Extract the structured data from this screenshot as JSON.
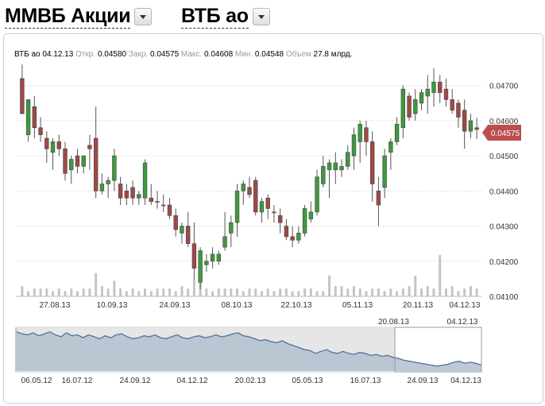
{
  "header": {
    "market_label": "ММВБ Акции",
    "ticker_label": "ВТБ ао"
  },
  "info_bar": {
    "ticker": "ВТБ ао",
    "date": "04.12.13",
    "open_label": "Откр.",
    "open": "0.04580",
    "close_label": "Закр.",
    "close": "0.04575",
    "high_label": "Макс.",
    "high": "0.04608",
    "low_label": "Мин.",
    "low": "0.04548",
    "volume_label": "Объем",
    "volume": "27.8 млрд."
  },
  "colors": {
    "up": "#3d9a3d",
    "down": "#a04848",
    "price_tag": "#bb4e4e",
    "navigator_fill": "#b2bfcd",
    "navigator_line": "#4f72a0"
  },
  "chart_data": [
    {
      "type": "candlestick",
      "x_tick_labels": [
        "27.08.13",
        "10.09.13",
        "24.09.13",
        "08.10.13",
        "22.10.13",
        "05.11.13",
        "20.11.13",
        "04.12.13"
      ],
      "y_tick_labels": [
        "0.04700",
        "0.04600",
        "0.04500",
        "0.04400",
        "0.04300",
        "0.04200",
        "0.04100"
      ],
      "ylim": [
        0.041,
        0.0474
      ],
      "last_price_label": "0.04575",
      "grid": "horizontal dotted",
      "candles": [
        {
          "o": 0.0472,
          "h": 0.0476,
          "l": 0.0462,
          "c": 0.0462
        },
        {
          "o": 0.0456,
          "h": 0.0466,
          "l": 0.0454,
          "c": 0.0466
        },
        {
          "o": 0.0464,
          "h": 0.0467,
          "l": 0.0455,
          "c": 0.0458
        },
        {
          "o": 0.0458,
          "h": 0.0461,
          "l": 0.0454,
          "c": 0.0456
        },
        {
          "o": 0.0455,
          "h": 0.0457,
          "l": 0.0448,
          "c": 0.0452
        },
        {
          "o": 0.0451,
          "h": 0.0455,
          "l": 0.0446,
          "c": 0.0454
        },
        {
          "o": 0.0454,
          "h": 0.0456,
          "l": 0.045,
          "c": 0.0452
        },
        {
          "o": 0.0452,
          "h": 0.0454,
          "l": 0.0443,
          "c": 0.0445
        },
        {
          "o": 0.0446,
          "h": 0.045,
          "l": 0.0442,
          "c": 0.0449
        },
        {
          "o": 0.045,
          "h": 0.0452,
          "l": 0.0445,
          "c": 0.0447
        },
        {
          "o": 0.0447,
          "h": 0.045,
          "l": 0.0445,
          "c": 0.045
        },
        {
          "o": 0.0453,
          "h": 0.0456,
          "l": 0.0446,
          "c": 0.0452
        },
        {
          "o": 0.0455,
          "h": 0.0464,
          "l": 0.0438,
          "c": 0.044
        },
        {
          "o": 0.044,
          "h": 0.0445,
          "l": 0.0439,
          "c": 0.0442
        },
        {
          "o": 0.0442,
          "h": 0.0444,
          "l": 0.0438,
          "c": 0.0443
        },
        {
          "o": 0.0443,
          "h": 0.0452,
          "l": 0.044,
          "c": 0.045
        },
        {
          "o": 0.0442,
          "h": 0.0444,
          "l": 0.0436,
          "c": 0.0438
        },
        {
          "o": 0.044,
          "h": 0.0442,
          "l": 0.0436,
          "c": 0.0438
        },
        {
          "o": 0.0441,
          "h": 0.0443,
          "l": 0.0436,
          "c": 0.0438
        },
        {
          "o": 0.0438,
          "h": 0.044,
          "l": 0.0436,
          "c": 0.0439
        },
        {
          "o": 0.0438,
          "h": 0.0449,
          "l": 0.0436,
          "c": 0.0448
        },
        {
          "o": 0.0438,
          "h": 0.0442,
          "l": 0.0436,
          "c": 0.0437
        },
        {
          "o": 0.0437,
          "h": 0.044,
          "l": 0.0435,
          "c": 0.0437
        },
        {
          "o": 0.0436,
          "h": 0.0439,
          "l": 0.0434,
          "c": 0.0436
        },
        {
          "o": 0.0436,
          "h": 0.0438,
          "l": 0.0432,
          "c": 0.0433
        },
        {
          "o": 0.0433,
          "h": 0.0435,
          "l": 0.0427,
          "c": 0.0429
        },
        {
          "o": 0.0428,
          "h": 0.0431,
          "l": 0.0425,
          "c": 0.043
        },
        {
          "o": 0.043,
          "h": 0.0434,
          "l": 0.0424,
          "c": 0.0425
        },
        {
          "o": 0.0425,
          "h": 0.0431,
          "l": 0.0415,
          "c": 0.0418
        },
        {
          "o": 0.0414,
          "h": 0.0424,
          "l": 0.0412,
          "c": 0.0423
        },
        {
          "o": 0.0419,
          "h": 0.0422,
          "l": 0.0417,
          "c": 0.042
        },
        {
          "o": 0.042,
          "h": 0.0424,
          "l": 0.0418,
          "c": 0.0422
        },
        {
          "o": 0.042,
          "h": 0.0423,
          "l": 0.0419,
          "c": 0.0422
        },
        {
          "o": 0.0424,
          "h": 0.0434,
          "l": 0.0423,
          "c": 0.0427
        },
        {
          "o": 0.0428,
          "h": 0.0433,
          "l": 0.0424,
          "c": 0.0431
        },
        {
          "o": 0.0431,
          "h": 0.0442,
          "l": 0.0427,
          "c": 0.044
        },
        {
          "o": 0.044,
          "h": 0.0443,
          "l": 0.0436,
          "c": 0.0442
        },
        {
          "o": 0.0441,
          "h": 0.0444,
          "l": 0.0438,
          "c": 0.0439
        },
        {
          "o": 0.0443,
          "h": 0.0444,
          "l": 0.0433,
          "c": 0.0434
        },
        {
          "o": 0.0434,
          "h": 0.0438,
          "l": 0.0431,
          "c": 0.0437
        },
        {
          "o": 0.0438,
          "h": 0.0439,
          "l": 0.0432,
          "c": 0.0435
        },
        {
          "o": 0.0434,
          "h": 0.0436,
          "l": 0.0431,
          "c": 0.0434
        },
        {
          "o": 0.0433,
          "h": 0.0435,
          "l": 0.0428,
          "c": 0.0431
        },
        {
          "o": 0.043,
          "h": 0.0432,
          "l": 0.0426,
          "c": 0.0427
        },
        {
          "o": 0.0427,
          "h": 0.043,
          "l": 0.0424,
          "c": 0.0426
        },
        {
          "o": 0.0426,
          "h": 0.043,
          "l": 0.0425,
          "c": 0.0428
        },
        {
          "o": 0.0428,
          "h": 0.0436,
          "l": 0.0427,
          "c": 0.0435
        },
        {
          "o": 0.0432,
          "h": 0.0437,
          "l": 0.0431,
          "c": 0.0434
        },
        {
          "o": 0.0434,
          "h": 0.0446,
          "l": 0.0433,
          "c": 0.0444
        },
        {
          "o": 0.0442,
          "h": 0.045,
          "l": 0.0441,
          "c": 0.0447
        },
        {
          "o": 0.0446,
          "h": 0.0449,
          "l": 0.0438,
          "c": 0.0448
        },
        {
          "o": 0.0446,
          "h": 0.0451,
          "l": 0.0442,
          "c": 0.0448
        },
        {
          "o": 0.0446,
          "h": 0.0449,
          "l": 0.0444,
          "c": 0.0447
        },
        {
          "o": 0.0447,
          "h": 0.0453,
          "l": 0.0446,
          "c": 0.0451
        },
        {
          "o": 0.045,
          "h": 0.0458,
          "l": 0.0446,
          "c": 0.0456
        },
        {
          "o": 0.0454,
          "h": 0.046,
          "l": 0.0448,
          "c": 0.0459
        },
        {
          "o": 0.0458,
          "h": 0.046,
          "l": 0.045,
          "c": 0.0454
        },
        {
          "o": 0.0454,
          "h": 0.0457,
          "l": 0.0437,
          "c": 0.0442
        },
        {
          "o": 0.044,
          "h": 0.0444,
          "l": 0.043,
          "c": 0.0436
        },
        {
          "o": 0.0441,
          "h": 0.0452,
          "l": 0.0438,
          "c": 0.045
        },
        {
          "o": 0.0451,
          "h": 0.0455,
          "l": 0.0446,
          "c": 0.0454
        },
        {
          "o": 0.0454,
          "h": 0.0461,
          "l": 0.0453,
          "c": 0.0459
        },
        {
          "o": 0.0458,
          "h": 0.047,
          "l": 0.0455,
          "c": 0.0469
        },
        {
          "o": 0.0467,
          "h": 0.0468,
          "l": 0.046,
          "c": 0.0461
        },
        {
          "o": 0.0462,
          "h": 0.0469,
          "l": 0.046,
          "c": 0.0466
        },
        {
          "o": 0.0465,
          "h": 0.0469,
          "l": 0.0463,
          "c": 0.0468
        },
        {
          "o": 0.0467,
          "h": 0.0473,
          "l": 0.0462,
          "c": 0.0469
        },
        {
          "o": 0.0468,
          "h": 0.0475,
          "l": 0.0464,
          "c": 0.0471
        },
        {
          "o": 0.0471,
          "h": 0.0473,
          "l": 0.0465,
          "c": 0.0468
        },
        {
          "o": 0.0469,
          "h": 0.0472,
          "l": 0.0464,
          "c": 0.0466
        },
        {
          "o": 0.0466,
          "h": 0.0469,
          "l": 0.0462,
          "c": 0.0463
        },
        {
          "o": 0.0465,
          "h": 0.0466,
          "l": 0.0458,
          "c": 0.0461
        },
        {
          "o": 0.0463,
          "h": 0.0466,
          "l": 0.0452,
          "c": 0.0457
        },
        {
          "o": 0.0457,
          "h": 0.0462,
          "l": 0.0455,
          "c": 0.046
        },
        {
          "o": 0.0458,
          "h": 0.04608,
          "l": 0.04548,
          "c": 0.04575
        }
      ],
      "volumes": [
        0.04,
        0.02,
        0.03,
        0.03,
        0.03,
        0.02,
        0.03,
        0.02,
        0.03,
        0.02,
        0.03,
        0.03,
        0.09,
        0.04,
        0.03,
        0.06,
        0.03,
        0.02,
        0.03,
        0.02,
        0.03,
        0.02,
        0.03,
        0.03,
        0.03,
        0.02,
        0.04,
        0.03,
        0.07,
        0.1,
        0.03,
        0.02,
        0.03,
        0.03,
        0.03,
        0.03,
        0.02,
        0.03,
        0.03,
        0.02,
        0.03,
        0.02,
        0.03,
        0.03,
        0.02,
        0.02,
        0.03,
        0.03,
        0.02,
        0.02,
        0.08,
        0.04,
        0.04,
        0.03,
        0.04,
        0.03,
        0.02,
        0.03,
        0.03,
        0.02,
        0.03,
        0.02,
        0.03,
        0.04,
        0.08,
        0.03,
        0.04,
        0.03,
        0.16,
        0.03,
        0.04,
        0.02,
        0.03,
        0.04,
        0.03
      ]
    },
    {
      "type": "area",
      "x_tick_labels": [
        "06.05.12",
        "16.07.12",
        "24.09.12",
        "04.12.12",
        "20.02.13",
        "05.05.13",
        "16.07.13",
        "24.09.13",
        "04.12.13"
      ],
      "selection_start_label": "20.08.13",
      "selection_end_label": "04.12.13",
      "values": [
        0.08,
        0.078,
        0.077,
        0.079,
        0.076,
        0.078,
        0.08,
        0.077,
        0.075,
        0.079,
        0.076,
        0.077,
        0.074,
        0.077,
        0.075,
        0.073,
        0.076,
        0.074,
        0.077,
        0.078,
        0.075,
        0.073,
        0.074,
        0.076,
        0.075,
        0.077,
        0.074,
        0.073,
        0.075,
        0.077,
        0.074,
        0.073,
        0.075,
        0.076,
        0.074,
        0.075,
        0.077,
        0.075,
        0.076,
        0.078,
        0.079,
        0.076,
        0.075,
        0.073,
        0.071,
        0.072,
        0.07,
        0.069,
        0.071,
        0.068,
        0.066,
        0.064,
        0.062,
        0.061,
        0.058,
        0.06,
        0.062,
        0.059,
        0.058,
        0.06,
        0.058,
        0.057,
        0.059,
        0.058,
        0.056,
        0.057,
        0.055,
        0.056,
        0.054,
        0.053,
        0.051,
        0.05,
        0.049,
        0.048,
        0.047,
        0.046,
        0.045,
        0.046,
        0.047,
        0.049,
        0.05,
        0.048,
        0.049,
        0.048,
        0.046
      ]
    }
  ]
}
